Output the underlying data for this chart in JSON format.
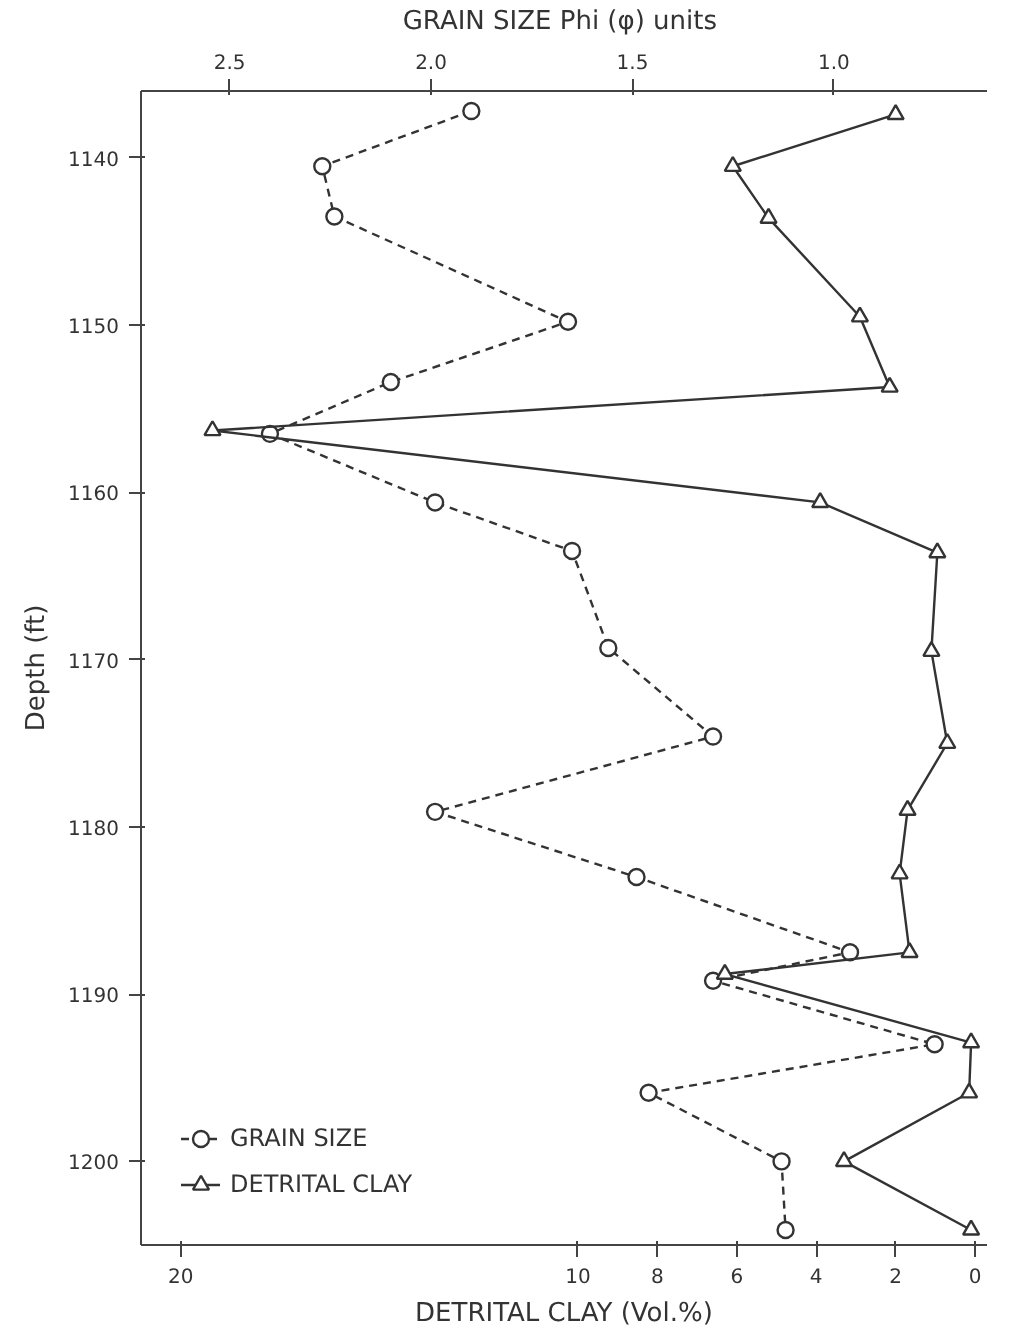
{
  "chart_data": {
    "type": "line",
    "x2label": "GRAIN SIZE  Phi (φ) units",
    "xlabel": "DETRITAL CLAY (Vol.%)",
    "ylabel": "Depth (ft)",
    "ylim": [
      1205,
      1136
    ],
    "yticks": [
      1140,
      1150,
      1160,
      1170,
      1180,
      1190,
      1200
    ],
    "xlim": [
      21,
      -0.3
    ],
    "xticks": [
      20,
      10,
      8,
      6,
      4,
      2,
      0
    ],
    "x2lim": [
      2.72,
      0.62
    ],
    "x2ticks": [
      2.5,
      {
        "value": 2,
        "label": "2.0"
      },
      1.5,
      {
        "value": 1,
        "label": "1.0"
      }
    ],
    "grid": false,
    "legend": "bottom left",
    "series": [
      {
        "name": "GRAIN SIZE",
        "color": "#333333",
        "axis": "x2",
        "marker": "circle",
        "line_style": "dashed",
        "x": [
          1.9,
          2.27,
          2.24,
          1.66,
          2.1,
          2.4,
          1.99,
          1.65,
          1.56,
          1.3,
          1.99,
          1.49,
          0.96,
          1.3,
          0.75,
          1.46,
          1.13,
          1.12
        ],
        "values": [
          1137.2,
          1140.5,
          1143.5,
          1149.8,
          1153.4,
          1156.5,
          1160.6,
          1163.5,
          1169.3,
          1174.6,
          1179.1,
          1183.0,
          1187.5,
          1189.2,
          1193.0,
          1195.9,
          1200.0,
          1204.1
        ]
      },
      {
        "name": "DETRITAL CLAY",
        "color": "#333333",
        "marker": "triangle",
        "line_style": "solid",
        "x": [
          2.0,
          6.1,
          5.2,
          2.9,
          2.15,
          19.2,
          3.9,
          0.95,
          1.1,
          0.7,
          1.7,
          1.9,
          1.65,
          6.3,
          0.1,
          0.15,
          3.3,
          0.1
        ],
        "values": [
          1137.4,
          1140.5,
          1143.6,
          1149.5,
          1153.7,
          1156.3,
          1160.6,
          1163.6,
          1169.5,
          1175.0,
          1179.0,
          1182.8,
          1187.5,
          1188.8,
          1192.9,
          1195.9,
          1200.0,
          1204.1
        ]
      }
    ]
  }
}
